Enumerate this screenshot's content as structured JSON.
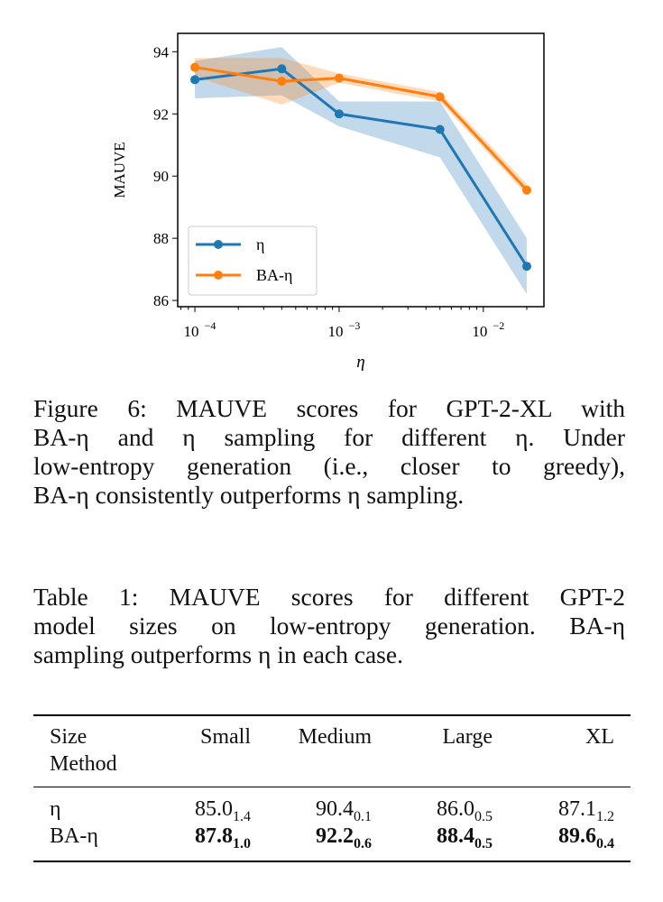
{
  "chart_data": {
    "type": "line",
    "xscale": "log",
    "xlabel": "η",
    "ylabel": "MAUVE",
    "xlim": [
      7.6e-05,
      0.0263
    ],
    "ylim": [
      85.8,
      94.59
    ],
    "xticks": [
      {
        "v": 0.0001,
        "label": "10",
        "exp": "−4"
      },
      {
        "v": 0.001,
        "label": "10",
        "exp": "−3"
      },
      {
        "v": 0.01,
        "label": "10",
        "exp": "−2"
      }
    ],
    "yticks": [
      86,
      88,
      90,
      92,
      94
    ],
    "x": [
      0.0001,
      0.0004,
      0.001,
      0.005,
      0.02
    ],
    "legend_position": "lower-left",
    "series": [
      {
        "name": "η",
        "color": "#1f77b4",
        "values": [
          93.1,
          93.45,
          92.0,
          91.5,
          87.1
        ],
        "lower": [
          92.5,
          92.6,
          91.6,
          90.6,
          86.2
        ],
        "upper": [
          93.7,
          94.15,
          92.4,
          92.4,
          88.0
        ]
      },
      {
        "name": "BA-η",
        "color": "#ff7f0e",
        "values": [
          93.5,
          93.05,
          93.15,
          92.55,
          89.55
        ],
        "lower": [
          93.2,
          92.3,
          93.0,
          92.4,
          89.4
        ],
        "upper": [
          93.8,
          93.8,
          93.3,
          92.7,
          89.75
        ]
      }
    ]
  },
  "figure_caption": {
    "lines": [
      "Figure 6:  MAUVE scores for GPT-2-XL with",
      "BA-η and η sampling for different η.  Under",
      "low-entropy generation (i.e., closer to greedy),",
      "BA-η consistently outperforms η sampling."
    ]
  },
  "table_caption": {
    "lines": [
      "Table 1:  MAUVE scores for different GPT-2",
      "model sizes on low-entropy generation.  BA-η",
      "sampling outperforms η in each case."
    ]
  },
  "table": {
    "header_size": "Size",
    "header_method": "Method",
    "columns": [
      "Small",
      "Medium",
      "Large",
      "XL"
    ],
    "rows": [
      {
        "method": "η",
        "bold": false,
        "cells": [
          {
            "v": "85.0",
            "s": "1.4"
          },
          {
            "v": "90.4",
            "s": "0.1"
          },
          {
            "v": "86.0",
            "s": "0.5"
          },
          {
            "v": "87.1",
            "s": "1.2"
          }
        ]
      },
      {
        "method": "BA-η",
        "bold": true,
        "cells": [
          {
            "v": "87.8",
            "s": "1.0"
          },
          {
            "v": "92.2",
            "s": "0.6"
          },
          {
            "v": "88.4",
            "s": "0.5"
          },
          {
            "v": "89.6",
            "s": "0.4"
          }
        ]
      }
    ]
  }
}
